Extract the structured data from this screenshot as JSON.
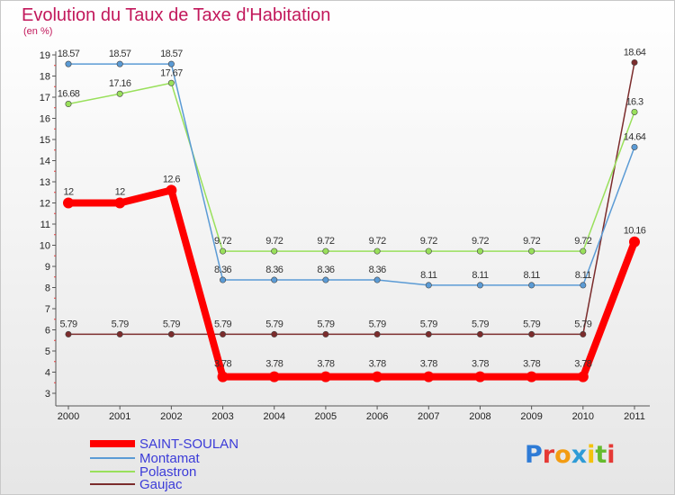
{
  "header": {
    "title": "Evolution du Taux de Taxe d'Habitation",
    "unit": "(en %)"
  },
  "logo": {
    "text": "Proxiti",
    "letters": [
      "P",
      "r",
      "o",
      "x",
      "i",
      "t",
      "i"
    ],
    "colors": [
      "#2e7bd6",
      "#e53935",
      "#f39c12",
      "#2e9bd6",
      "#f4c20d",
      "#66bb2d",
      "#e53935"
    ]
  },
  "chart_data": {
    "type": "line",
    "title": "Evolution du Taux de Taxe d'Habitation",
    "ylabel": "(en %)",
    "xlabel": "",
    "x": [
      2000,
      2001,
      2002,
      2003,
      2004,
      2005,
      2006,
      2007,
      2008,
      2009,
      2010,
      2011
    ],
    "ylim": [
      3,
      19
    ],
    "yticks": [
      3,
      4,
      5,
      6,
      7,
      8,
      9,
      10,
      11,
      12,
      13,
      14,
      15,
      16,
      17,
      18,
      19
    ],
    "grid": false,
    "legend": "bottom-left",
    "series": [
      {
        "name": "SAINT-SOULAN",
        "color": "#ff0000",
        "values": [
          12,
          12,
          12.6,
          3.78,
          3.78,
          3.78,
          3.78,
          3.78,
          3.78,
          3.78,
          3.78,
          10.16
        ],
        "labels": [
          "12",
          "12",
          "12.6",
          "3.78",
          "3.78",
          "3.78",
          "3.78",
          "3.78",
          "3.78",
          "3.78",
          "3.78",
          "10.16"
        ]
      },
      {
        "name": "Montamat",
        "color": "#5b9bd5",
        "values": [
          18.57,
          18.57,
          18.57,
          8.36,
          8.36,
          8.36,
          8.36,
          8.11,
          8.11,
          8.11,
          8.11,
          14.64
        ],
        "labels": [
          "18.57",
          "18.57",
          "18.57",
          "8.36",
          "8.36",
          "8.36",
          "8.36",
          "8.11",
          "8.11",
          "8.11",
          "8.11",
          "14.64"
        ]
      },
      {
        "name": "Polastron",
        "color": "#99e05b",
        "values": [
          16.68,
          17.16,
          17.67,
          9.72,
          9.72,
          9.72,
          9.72,
          9.72,
          9.72,
          9.72,
          9.72,
          16.3
        ],
        "labels": [
          "16.68",
          "17.16",
          "17.67",
          "9.72",
          "9.72",
          "9.72",
          "9.72",
          "9.72",
          "9.72",
          "9.72",
          "9.72",
          "16.3"
        ]
      },
      {
        "name": "Gaujac",
        "color": "#7b2c2c",
        "values": [
          5.79,
          5.79,
          5.79,
          5.79,
          5.79,
          5.79,
          5.79,
          5.79,
          5.79,
          5.79,
          5.79,
          18.64
        ],
        "labels": [
          "5.79",
          "5.79",
          "5.79",
          "5.79",
          "5.79",
          "5.79",
          "5.79",
          "5.79",
          "5.79",
          "5.79",
          "5.79",
          "18.64"
        ]
      }
    ],
    "legend_text_color": "#3b3bd8"
  }
}
